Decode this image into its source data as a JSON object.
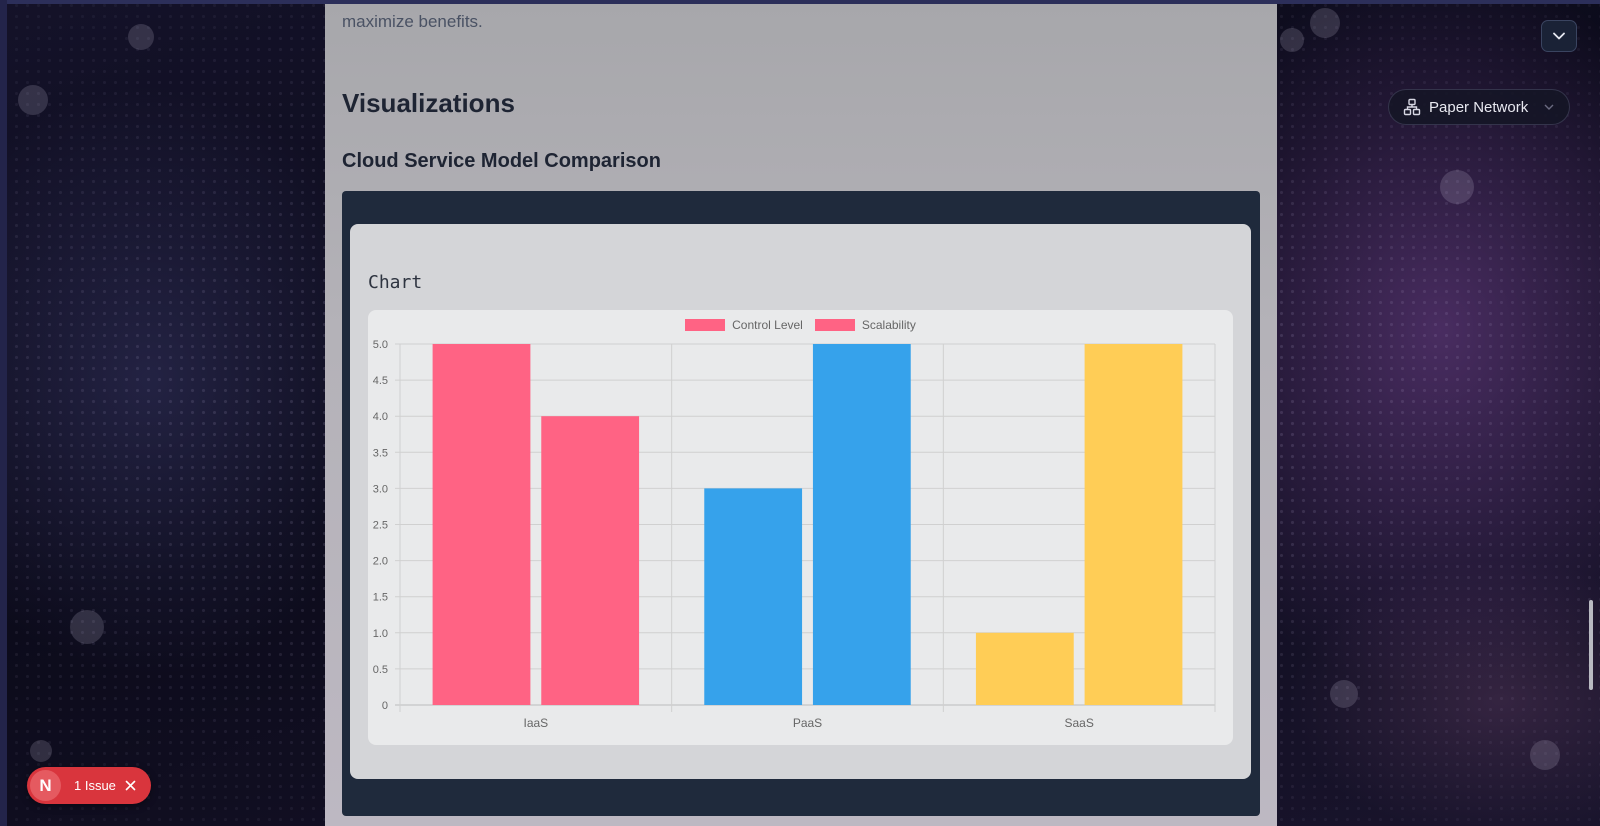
{
  "content": {
    "intro_tail": "maximize benefits.",
    "section_heading": "Visualizations",
    "subsection_heading": "Cloud Service Model Comparison",
    "chart_card_title": "Chart"
  },
  "chart_data": {
    "type": "bar",
    "title": "",
    "categories": [
      "IaaS",
      "PaaS",
      "SaaS"
    ],
    "series": [
      {
        "name": "Control Level",
        "values": [
          5,
          3,
          1
        ]
      },
      {
        "name": "Scalability",
        "values": [
          4,
          5,
          5
        ]
      }
    ],
    "bar_colors": [
      "#ff6384",
      "#36a2eb",
      "#ffcd56"
    ],
    "legend_colors": [
      "#ff6384",
      "#ff6384"
    ],
    "y_ticks": [
      "0",
      "0.5",
      "1.0",
      "1.5",
      "2.0",
      "2.5",
      "3.0",
      "3.5",
      "4.0",
      "4.5",
      "5.0"
    ],
    "ylim": [
      0,
      5
    ],
    "xlabel": "",
    "ylabel": "",
    "legend_position": "top",
    "grid": true
  },
  "widgets": {
    "network_label": "Paper Network",
    "issue_logo": "N",
    "issue_label": "1 Issue"
  },
  "icons": {
    "dropdown": "chevron-down-icon",
    "network": "network-icon",
    "close": "close-icon"
  },
  "colors": {
    "issue_badge": "#d9353d",
    "panel_dark": "#1f2a3c"
  }
}
